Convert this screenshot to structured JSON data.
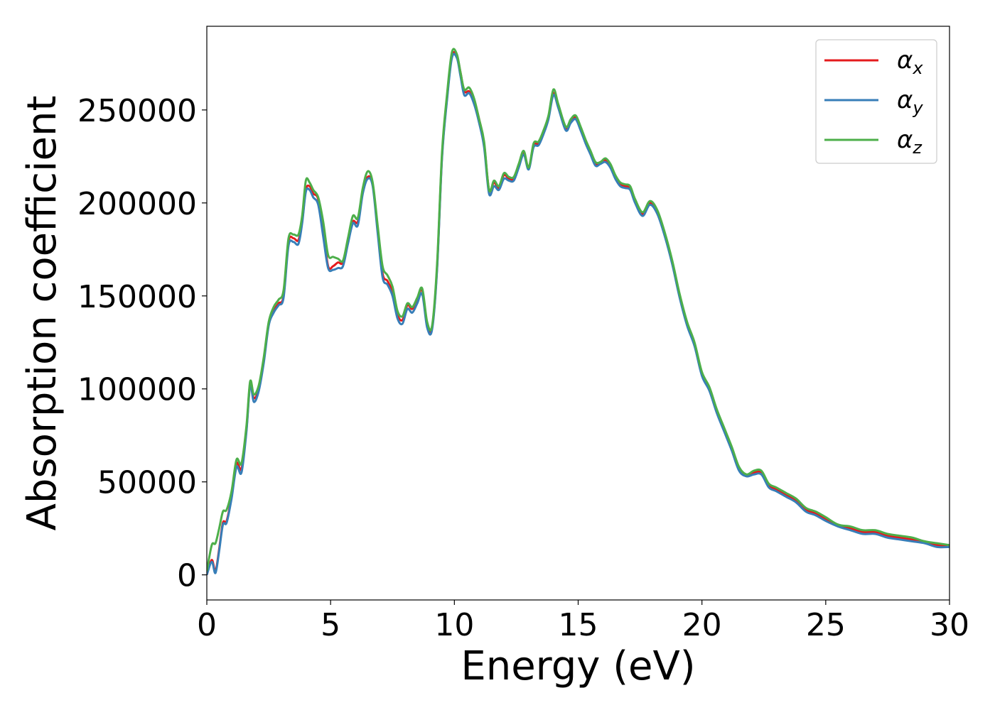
{
  "chart_data": {
    "type": "line",
    "title": "",
    "xlabel": "Energy (eV)",
    "ylabel": "Absorption coefficient",
    "xlim": [
      0,
      30
    ],
    "ylim": [
      -13500,
      295000
    ],
    "xticks": [
      0,
      5,
      10,
      15,
      20,
      25,
      30
    ],
    "yticks": [
      0,
      50000,
      100000,
      150000,
      200000,
      250000
    ],
    "grid": false,
    "legend_position": "top-right",
    "series": [
      {
        "name": "α",
        "subscript": "x",
        "color": "#e41a1c",
        "x": [
          0,
          0.2,
          0.35,
          0.5,
          0.65,
          0.8,
          1.0,
          1.2,
          1.4,
          1.6,
          1.75,
          1.9,
          2.1,
          2.3,
          2.5,
          2.7,
          2.9,
          3.1,
          3.3,
          3.5,
          3.7,
          3.85,
          4.0,
          4.15,
          4.3,
          4.5,
          4.7,
          4.9,
          5.1,
          5.3,
          5.5,
          5.7,
          5.9,
          6.1,
          6.3,
          6.5,
          6.7,
          6.9,
          7.1,
          7.3,
          7.5,
          7.7,
          7.9,
          8.1,
          8.3,
          8.5,
          8.7,
          8.9,
          9.1,
          9.3,
          9.5,
          9.7,
          9.9,
          10.1,
          10.25,
          10.4,
          10.6,
          10.8,
          11.0,
          11.2,
          11.4,
          11.6,
          11.8,
          12.0,
          12.2,
          12.4,
          12.6,
          12.8,
          13.0,
          13.2,
          13.4,
          13.6,
          13.8,
          14.0,
          14.2,
          14.5,
          14.7,
          14.9,
          15.1,
          15.3,
          15.5,
          15.7,
          15.9,
          16.1,
          16.3,
          16.5,
          16.7,
          16.9,
          17.1,
          17.3,
          17.6,
          17.9,
          18.2,
          18.5,
          18.8,
          19.1,
          19.4,
          19.7,
          20.0,
          20.3,
          20.6,
          20.9,
          21.2,
          21.5,
          21.8,
          22.1,
          22.4,
          22.7,
          23.0,
          23.4,
          23.8,
          24.2,
          24.6,
          25.0,
          25.5,
          26.0,
          26.5,
          27.0,
          27.5,
          28.0,
          28.5,
          29.0,
          29.5,
          30.0
        ],
        "y": [
          0,
          8000,
          2000,
          14000,
          28000,
          29000,
          42000,
          60000,
          57000,
          78000,
          103000,
          95000,
          100000,
          115000,
          135000,
          142000,
          146000,
          150000,
          179000,
          181000,
          180000,
          190000,
          207000,
          209000,
          205000,
          202000,
          185000,
          166000,
          166000,
          168000,
          168000,
          180000,
          190000,
          190000,
          206000,
          214000,
          210000,
          186000,
          162000,
          158000,
          152000,
          140000,
          137000,
          145000,
          143000,
          148000,
          153000,
          134000,
          133000,
          165000,
          225000,
          256000,
          279000,
          279000,
          270000,
          260000,
          260000,
          255000,
          245000,
          232000,
          207000,
          211000,
          208000,
          215000,
          213000,
          213000,
          220000,
          227000,
          219000,
          231000,
          232000,
          238000,
          246000,
          259000,
          252000,
          240000,
          244000,
          246000,
          240000,
          233000,
          227000,
          221000,
          222000,
          223000,
          220000,
          214000,
          210000,
          209000,
          208000,
          201000,
          194000,
          200000,
          195000,
          183000,
          168000,
          150000,
          135000,
          124000,
          108000,
          100000,
          88000,
          78000,
          68000,
          57000,
          53000,
          55000,
          55000,
          48000,
          46000,
          43000,
          40000,
          35000,
          33000,
          30000,
          27000,
          25000,
          23000,
          23000,
          21000,
          20000,
          19000,
          18000,
          16000,
          16000
        ]
      },
      {
        "name": "α",
        "subscript": "y",
        "color": "#377eb8",
        "x": [
          0,
          0.2,
          0.35,
          0.5,
          0.65,
          0.8,
          1.0,
          1.2,
          1.4,
          1.6,
          1.75,
          1.9,
          2.1,
          2.3,
          2.5,
          2.7,
          2.9,
          3.1,
          3.3,
          3.5,
          3.7,
          3.85,
          4.0,
          4.15,
          4.3,
          4.5,
          4.7,
          4.9,
          5.1,
          5.3,
          5.5,
          5.7,
          5.9,
          6.1,
          6.3,
          6.5,
          6.7,
          6.9,
          7.1,
          7.3,
          7.5,
          7.7,
          7.9,
          8.1,
          8.3,
          8.5,
          8.7,
          8.9,
          9.1,
          9.3,
          9.5,
          9.7,
          9.9,
          10.1,
          10.25,
          10.4,
          10.6,
          10.8,
          11.0,
          11.2,
          11.4,
          11.6,
          11.8,
          12.0,
          12.2,
          12.4,
          12.6,
          12.8,
          13.0,
          13.2,
          13.4,
          13.6,
          13.8,
          14.0,
          14.2,
          14.5,
          14.7,
          14.9,
          15.1,
          15.3,
          15.5,
          15.7,
          15.9,
          16.1,
          16.3,
          16.5,
          16.7,
          16.9,
          17.1,
          17.3,
          17.6,
          17.9,
          18.2,
          18.5,
          18.8,
          19.1,
          19.4,
          19.7,
          20.0,
          20.3,
          20.6,
          20.9,
          21.2,
          21.5,
          21.8,
          22.1,
          22.4,
          22.7,
          23.0,
          23.4,
          23.8,
          24.2,
          24.6,
          25.0,
          25.5,
          26.0,
          26.5,
          27.0,
          27.5,
          28.0,
          28.5,
          29.0,
          29.5,
          30.0
        ],
        "y": [
          0,
          7000,
          1000,
          13000,
          27000,
          28000,
          41000,
          58000,
          55000,
          77000,
          102000,
          93000,
          99000,
          114000,
          134000,
          141000,
          145000,
          149000,
          177000,
          179000,
          178000,
          189000,
          206000,
          207000,
          203000,
          199000,
          182000,
          165000,
          164000,
          165000,
          166000,
          178000,
          189000,
          188000,
          205000,
          213000,
          209000,
          184000,
          160000,
          156000,
          150000,
          138000,
          135000,
          143000,
          141000,
          146000,
          151000,
          133000,
          132000,
          164000,
          224000,
          255000,
          278000,
          278000,
          268000,
          258000,
          259000,
          253000,
          243000,
          230000,
          205000,
          209000,
          207000,
          213000,
          212000,
          212000,
          219000,
          226000,
          218000,
          230000,
          231000,
          237000,
          245000,
          258000,
          251000,
          239000,
          243000,
          245000,
          239000,
          232000,
          226000,
          220000,
          221000,
          222000,
          219000,
          213000,
          209000,
          208000,
          207000,
          200000,
          193000,
          199000,
          194000,
          182000,
          167000,
          149000,
          134000,
          123000,
          107000,
          99000,
          87000,
          77000,
          67000,
          56000,
          53000,
          54000,
          54000,
          47000,
          45000,
          42000,
          39000,
          34000,
          32000,
          29000,
          26000,
          24000,
          22000,
          22000,
          20000,
          19000,
          18000,
          17000,
          15000,
          15000
        ]
      },
      {
        "name": "α",
        "subscript": "z",
        "color": "#4daf4a",
        "x": [
          0,
          0.2,
          0.35,
          0.5,
          0.65,
          0.8,
          1.0,
          1.2,
          1.4,
          1.6,
          1.75,
          1.9,
          2.1,
          2.3,
          2.5,
          2.7,
          2.9,
          3.1,
          3.3,
          3.5,
          3.7,
          3.85,
          4.0,
          4.15,
          4.3,
          4.5,
          4.7,
          4.9,
          5.1,
          5.3,
          5.5,
          5.7,
          5.9,
          6.1,
          6.3,
          6.5,
          6.7,
          6.9,
          7.1,
          7.3,
          7.5,
          7.7,
          7.9,
          8.1,
          8.3,
          8.5,
          8.7,
          8.9,
          9.1,
          9.3,
          9.5,
          9.7,
          9.9,
          10.1,
          10.25,
          10.4,
          10.6,
          10.8,
          11.0,
          11.2,
          11.4,
          11.6,
          11.8,
          12.0,
          12.2,
          12.4,
          12.6,
          12.8,
          13.0,
          13.2,
          13.4,
          13.6,
          13.8,
          14.0,
          14.2,
          14.5,
          14.7,
          14.9,
          15.1,
          15.3,
          15.5,
          15.7,
          15.9,
          16.1,
          16.3,
          16.5,
          16.7,
          16.9,
          17.1,
          17.3,
          17.6,
          17.9,
          18.2,
          18.5,
          18.8,
          19.1,
          19.4,
          19.7,
          20.0,
          20.3,
          20.6,
          20.9,
          21.2,
          21.5,
          21.8,
          22.1,
          22.4,
          22.7,
          23.0,
          23.4,
          23.8,
          24.2,
          24.6,
          25.0,
          25.5,
          26.0,
          26.5,
          27.0,
          27.5,
          28.0,
          28.5,
          29.0,
          29.5,
          30.0
        ],
        "y": [
          2000,
          16000,
          17000,
          25000,
          34000,
          35000,
          45000,
          62000,
          60000,
          80000,
          104000,
          97000,
          102000,
          117000,
          136000,
          144000,
          148000,
          153000,
          181000,
          183000,
          183000,
          193000,
          212000,
          211000,
          207000,
          203000,
          190000,
          172000,
          171000,
          170000,
          169000,
          181000,
          193000,
          192000,
          208000,
          217000,
          211000,
          188000,
          166000,
          161000,
          155000,
          142000,
          139000,
          146000,
          144000,
          149000,
          154000,
          136000,
          134000,
          167000,
          227000,
          258000,
          281000,
          280000,
          270000,
          261000,
          262000,
          256000,
          245000,
          233000,
          207000,
          212000,
          209000,
          216000,
          214000,
          214000,
          221000,
          228000,
          219000,
          232000,
          233000,
          239000,
          247000,
          261000,
          253000,
          241000,
          245000,
          247000,
          241000,
          234000,
          228000,
          222000,
          222000,
          224000,
          221000,
          215000,
          211000,
          210000,
          209000,
          202000,
          195000,
          201000,
          196000,
          184000,
          169000,
          151000,
          136000,
          125000,
          109000,
          101000,
          89000,
          79000,
          69000,
          58000,
          54000,
          56000,
          56000,
          49000,
          47000,
          44000,
          41000,
          36000,
          34000,
          31000,
          27000,
          26000,
          24000,
          24000,
          22000,
          21000,
          20000,
          18000,
          17000,
          16000
        ]
      }
    ]
  }
}
